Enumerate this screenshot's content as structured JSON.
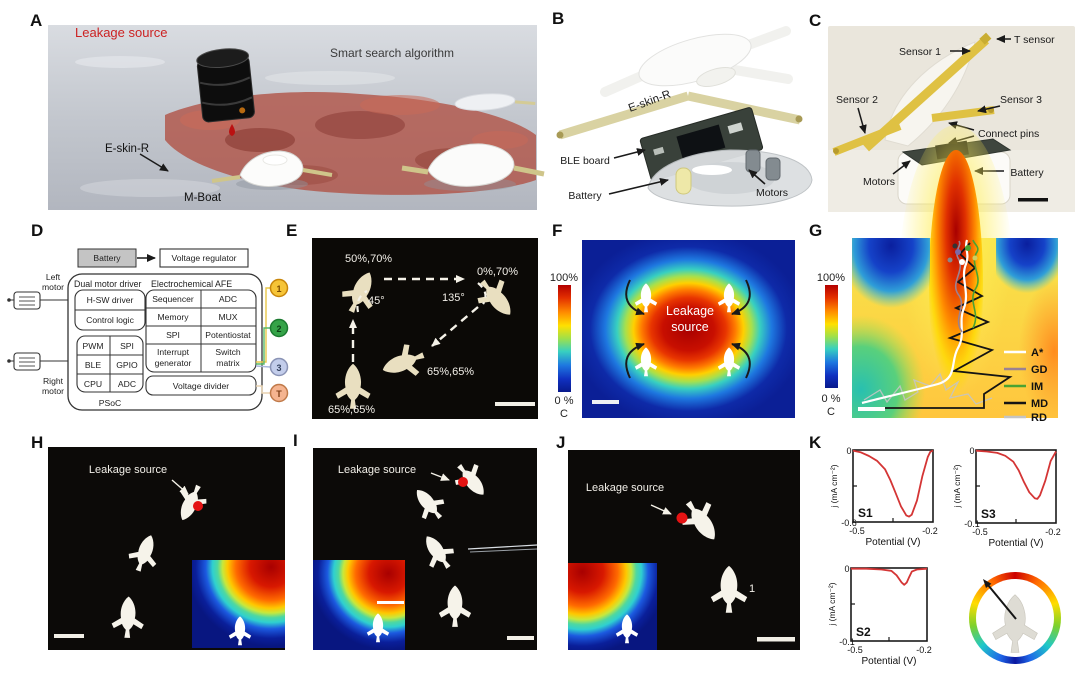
{
  "panel_letters": {
    "a": "A",
    "b": "B",
    "c": "C",
    "d": "D",
    "e": "E",
    "f": "F",
    "g": "G",
    "h": "H",
    "i": "I",
    "j": "J",
    "k": "K"
  },
  "panel_a": {
    "leakage_source": "Leakage source",
    "algorithm": "Smart search algorithm",
    "eskin": "E-skin-R",
    "boat": "M-Boat"
  },
  "panel_b": {
    "eskin": "E-skin-R",
    "ble": "BLE board",
    "battery": "Battery",
    "motors": "Motors"
  },
  "panel_c": {
    "t_sensor": "T sensor",
    "sensor1": "Sensor 1",
    "sensor2": "Sensor 2",
    "sensor3": "Sensor 3",
    "pins": "Connect pins",
    "motors": "Motors",
    "battery": "Battery"
  },
  "panel_d": {
    "battery": "Battery",
    "voltage_regulator": "Voltage regulator",
    "left1": "Left",
    "left2": "motor",
    "right1": "Right",
    "right2": "motor",
    "dual_motor_driver": "Dual motor driver",
    "hsw": "H-SW driver",
    "control_logic": "Control logic",
    "pwm": "PWM",
    "spi_l": "SPI",
    "ble": "BLE",
    "gpio": "GPIO",
    "cpu": "CPU",
    "adc_l": "ADC",
    "psoc": "PSoC",
    "afe": "Electrochemical AFE",
    "sequencer": "Sequencer",
    "adc_r": "ADC",
    "memory": "Memory",
    "mux": "MUX",
    "spi_r": "SPI",
    "potentiostat": "Potentiostat",
    "interrupt1": "Interrupt",
    "interrupt2": "generator",
    "switch1": "Switch",
    "switch2": "matrix",
    "voltage_divider": "Voltage divider",
    "ch": [
      {
        "label": "1",
        "fill": "#f6c437",
        "stroke": "#c8860a",
        "wire": "#e8c84a"
      },
      {
        "label": "2",
        "fill": "#35a348",
        "stroke": "#1c7a30",
        "wire": "#58b868"
      },
      {
        "label": "3",
        "fill": "#c3cdeb",
        "stroke": "#8a93b5",
        "wire": "#aab8dd"
      },
      {
        "label": "T",
        "fill": "#f5b490",
        "stroke": "#c07a4a",
        "wire": "#e8d2b0"
      }
    ]
  },
  "panel_e": {
    "wp1": "50%,70%",
    "wp2": "0%,70%",
    "a45": "45°",
    "a135": "135°",
    "wp3": "65%,65%",
    "wp4": "65%,65%"
  },
  "panel_f": {
    "cb_max": "100%",
    "cb_min": "0 %",
    "cb_unit": "C",
    "line1": "Leakage",
    "line2": "source"
  },
  "panel_g": {
    "cb_max": "100%",
    "cb_min": "0 %",
    "cb_unit": "C",
    "legend": [
      {
        "label": "A*",
        "color": "#ffffff"
      },
      {
        "label": "GD",
        "color": "#9b8292"
      },
      {
        "label": "IM",
        "color": "#4aa332"
      },
      {
        "label": "MD",
        "color": "#141414"
      },
      {
        "label": "RD",
        "color": "#c4c4c4"
      }
    ]
  },
  "panel_h": {
    "leakage": "Leakage source"
  },
  "panel_i": {
    "leakage": "Leakage source"
  },
  "panel_j": {
    "leakage": "Leakage source",
    "num": "1"
  },
  "panel_k": {
    "plots": [
      {
        "id": "S1",
        "ylabel": "j (mA cm⁻²)",
        "xlabel": "Potential (V)",
        "y_top": "0",
        "y_bot": "-0.6",
        "x_left": "-0.5",
        "x_right": "-0.2"
      },
      {
        "id": "S3",
        "ylabel": "j (mA cm⁻²)",
        "xlabel": "Potential (V)",
        "y_top": "0",
        "y_bot": "-0.1",
        "x_left": "-0.5",
        "x_right": "-0.2"
      },
      {
        "id": "S2",
        "ylabel": "j (mA cm⁻²)",
        "xlabel": "Potential (V)",
        "y_top": "0",
        "y_bot": "-0.1",
        "x_left": "-0.5",
        "x_right": "-0.2"
      }
    ]
  },
  "chart_data": [
    {
      "type": "line",
      "title": "S1",
      "xlabel": "Potential (V)",
      "ylabel": "j (mA cm⁻²)",
      "xlim": [
        -0.5,
        -0.2
      ],
      "ylim": [
        -0.6,
        0
      ],
      "color": "#d43535",
      "grid": false,
      "x": [
        -0.5,
        -0.47,
        -0.44,
        -0.41,
        -0.38,
        -0.36,
        -0.34,
        -0.32,
        -0.3,
        -0.29,
        -0.28,
        -0.26,
        -0.24,
        -0.22,
        -0.21,
        -0.2
      ],
      "y": [
        -0.005,
        -0.02,
        -0.05,
        -0.09,
        -0.16,
        -0.25,
        -0.36,
        -0.47,
        -0.545,
        -0.555,
        -0.54,
        -0.42,
        -0.22,
        -0.06,
        -0.015,
        -0.005
      ]
    },
    {
      "type": "line",
      "title": "S3",
      "xlabel": "Potential (V)",
      "ylabel": "j (mA cm⁻²)",
      "xlim": [
        -0.5,
        -0.2
      ],
      "ylim": [
        -0.1,
        0
      ],
      "color": "#d43535",
      "grid": false,
      "x": [
        -0.5,
        -0.46,
        -0.42,
        -0.39,
        -0.36,
        -0.34,
        -0.32,
        -0.3,
        -0.28,
        -0.27,
        -0.26,
        -0.24,
        -0.22,
        -0.2
      ],
      "y": [
        -0.001,
        -0.002,
        -0.004,
        -0.008,
        -0.016,
        -0.028,
        -0.044,
        -0.058,
        -0.066,
        -0.067,
        -0.062,
        -0.042,
        -0.015,
        -0.002
      ]
    },
    {
      "type": "line",
      "title": "S2",
      "xlabel": "Potential (V)",
      "ylabel": "j (mA cm⁻²)",
      "xlim": [
        -0.5,
        -0.2
      ],
      "ylim": [
        -0.1,
        0
      ],
      "color": "#d43535",
      "grid": false,
      "x": [
        -0.5,
        -0.44,
        -0.38,
        -0.34,
        -0.32,
        -0.3,
        -0.29,
        -0.28,
        -0.27,
        -0.26,
        -0.24,
        -0.2
      ],
      "y": [
        -0.001,
        -0.001,
        -0.002,
        -0.004,
        -0.01,
        -0.02,
        -0.023,
        -0.02,
        -0.012,
        -0.005,
        -0.002,
        -0.001
      ]
    }
  ]
}
